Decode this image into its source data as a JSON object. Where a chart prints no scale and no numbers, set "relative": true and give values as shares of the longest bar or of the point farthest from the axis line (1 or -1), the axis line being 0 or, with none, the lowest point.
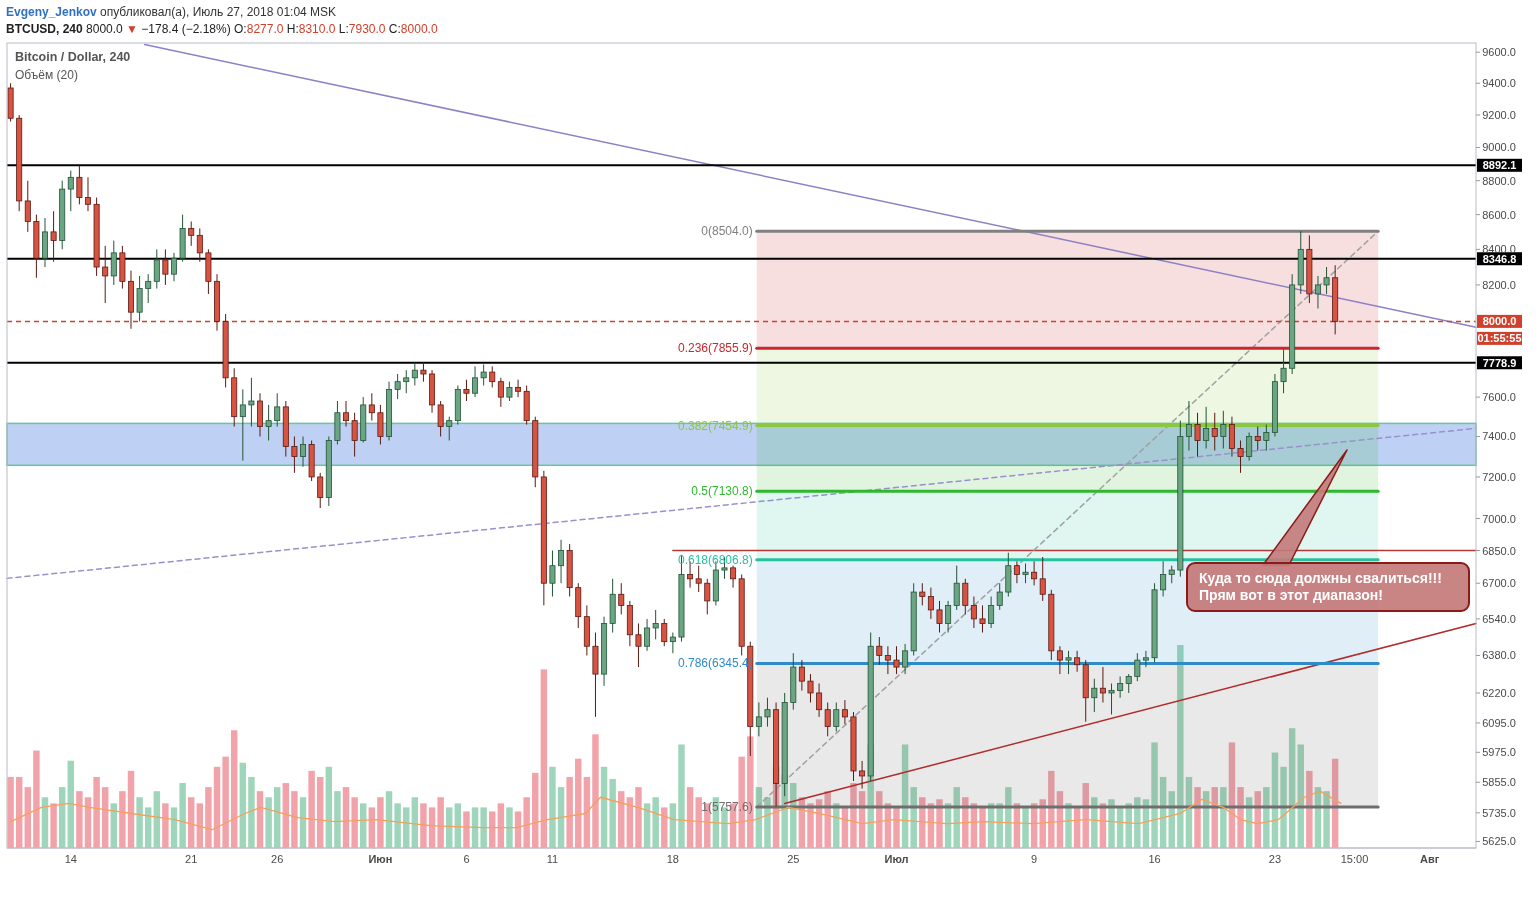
{
  "chart_data": [
    {
      "type": "candlestick",
      "title": "Bitcoin / Dollar, 240",
      "subtitle": "BTCUSD, 240 8000.0 ▼ −178.4 (−2.18%) O:8277.0 H:8310.0 L:7930.0 C:8000.0",
      "x": [
        "2018-05-10T12:00",
        "2018-05-11T00:00",
        "2018-05-11T12:00",
        "2018-05-12T00:00",
        "2018-05-12T12:00",
        "2018-05-13T00:00",
        "2018-05-13T12:00",
        "2018-05-14T00:00",
        "2018-05-14T12:00",
        "2018-05-15T00:00",
        "2018-05-15T12:00",
        "2018-05-16T00:00",
        "2018-05-16T12:00",
        "2018-05-17T00:00",
        "2018-05-17T12:00",
        "2018-05-18T00:00",
        "2018-05-18T12:00",
        "2018-05-19T00:00",
        "2018-05-19T12:00",
        "2018-05-20T00:00",
        "2018-05-20T12:00",
        "2018-05-21T00:00",
        "2018-05-21T12:00",
        "2018-05-22T00:00",
        "2018-05-22T12:00",
        "2018-05-23T00:00",
        "2018-05-23T12:00",
        "2018-05-24T00:00",
        "2018-05-24T12:00",
        "2018-05-25T00:00",
        "2018-05-25T12:00",
        "2018-05-26T00:00",
        "2018-05-26T12:00",
        "2018-05-27T00:00",
        "2018-05-27T12:00",
        "2018-05-28T00:00",
        "2018-05-28T12:00",
        "2018-05-29T00:00",
        "2018-05-29T12:00",
        "2018-05-30T00:00",
        "2018-05-30T12:00",
        "2018-05-31T00:00",
        "2018-05-31T12:00",
        "2018-06-01T00:00",
        "2018-06-01T12:00",
        "2018-06-02T00:00",
        "2018-06-02T12:00",
        "2018-06-03T00:00",
        "2018-06-03T12:00",
        "2018-06-04T00:00",
        "2018-06-04T12:00",
        "2018-06-05T00:00",
        "2018-06-05T12:00",
        "2018-06-06T00:00",
        "2018-06-06T12:00",
        "2018-06-07T00:00",
        "2018-06-07T12:00",
        "2018-06-08T00:00",
        "2018-06-08T12:00",
        "2018-06-09T00:00",
        "2018-06-09T12:00",
        "2018-06-10T00:00",
        "2018-06-10T12:00",
        "2018-06-11T00:00",
        "2018-06-11T12:00",
        "2018-06-12T00:00",
        "2018-06-12T12:00",
        "2018-06-13T00:00",
        "2018-06-13T12:00",
        "2018-06-14T00:00",
        "2018-06-14T12:00",
        "2018-06-15T00:00",
        "2018-06-15T12:00",
        "2018-06-16T00:00",
        "2018-06-16T12:00",
        "2018-06-17T00:00",
        "2018-06-17T12:00",
        "2018-06-18T00:00",
        "2018-06-18T12:00",
        "2018-06-19T00:00",
        "2018-06-19T12:00",
        "2018-06-20T00:00",
        "2018-06-20T12:00",
        "2018-06-21T00:00",
        "2018-06-21T12:00",
        "2018-06-22T00:00",
        "2018-06-22T12:00",
        "2018-06-23T00:00",
        "2018-06-23T12:00",
        "2018-06-24T00:00",
        "2018-06-24T12:00",
        "2018-06-25T00:00",
        "2018-06-25T12:00",
        "2018-06-26T00:00",
        "2018-06-26T12:00",
        "2018-06-27T00:00",
        "2018-06-27T12:00",
        "2018-06-28T00:00",
        "2018-06-28T12:00",
        "2018-06-29T00:00",
        "2018-06-29T12:00",
        "2018-06-30T00:00",
        "2018-06-30T12:00",
        "2018-07-01T00:00",
        "2018-07-01T12:00",
        "2018-07-02T00:00",
        "2018-07-02T12:00",
        "2018-07-03T00:00",
        "2018-07-03T12:00",
        "2018-07-04T00:00",
        "2018-07-04T12:00",
        "2018-07-05T00:00",
        "2018-07-05T12:00",
        "2018-07-06T00:00",
        "2018-07-06T12:00",
        "2018-07-07T00:00",
        "2018-07-07T12:00",
        "2018-07-08T00:00",
        "2018-07-08T12:00",
        "2018-07-09T00:00",
        "2018-07-09T12:00",
        "2018-07-10T00:00",
        "2018-07-10T12:00",
        "2018-07-11T00:00",
        "2018-07-11T12:00",
        "2018-07-12T00:00",
        "2018-07-12T12:00",
        "2018-07-13T00:00",
        "2018-07-13T12:00",
        "2018-07-14T00:00",
        "2018-07-14T12:00",
        "2018-07-15T00:00",
        "2018-07-15T12:00",
        "2018-07-16T00:00",
        "2018-07-16T12:00",
        "2018-07-17T00:00",
        "2018-07-17T12:00",
        "2018-07-18T00:00",
        "2018-07-18T12:00",
        "2018-07-19T00:00",
        "2018-07-19T12:00",
        "2018-07-20T00:00",
        "2018-07-20T12:00",
        "2018-07-21T00:00",
        "2018-07-21T12:00",
        "2018-07-22T00:00",
        "2018-07-22T12:00",
        "2018-07-23T00:00",
        "2018-07-23T12:00",
        "2018-07-24T00:00",
        "2018-07-24T12:00",
        "2018-07-25T00:00",
        "2018-07-25T12:00",
        "2018-07-26T00:00",
        "2018-07-26T12:00"
      ],
      "ohlc": [
        [
          9370,
          9400,
          9160,
          9180
        ],
        [
          9180,
          9200,
          8620,
          8680
        ],
        [
          8680,
          8800,
          8500,
          8560
        ],
        [
          8560,
          8600,
          8240,
          8350
        ],
        [
          8350,
          8580,
          8300,
          8500
        ],
        [
          8500,
          8620,
          8330,
          8450
        ],
        [
          8450,
          8800,
          8400,
          8750
        ],
        [
          8750,
          8860,
          8620,
          8820
        ],
        [
          8820,
          8890,
          8660,
          8700
        ],
        [
          8700,
          8820,
          8620,
          8660
        ],
        [
          8660,
          8700,
          8250,
          8300
        ],
        [
          8300,
          8420,
          8100,
          8250
        ],
        [
          8250,
          8450,
          8200,
          8380
        ],
        [
          8380,
          8420,
          8180,
          8220
        ],
        [
          8220,
          8280,
          7960,
          8050
        ],
        [
          8050,
          8250,
          8000,
          8180
        ],
        [
          8180,
          8260,
          8100,
          8220
        ],
        [
          8220,
          8400,
          8180,
          8340
        ],
        [
          8340,
          8400,
          8200,
          8260
        ],
        [
          8260,
          8380,
          8220,
          8350
        ],
        [
          8350,
          8600,
          8330,
          8520
        ],
        [
          8520,
          8560,
          8420,
          8480
        ],
        [
          8480,
          8520,
          8330,
          8380
        ],
        [
          8380,
          8400,
          8150,
          8220
        ],
        [
          8220,
          8260,
          7950,
          8000
        ],
        [
          8000,
          8040,
          7650,
          7700
        ],
        [
          7700,
          7750,
          7450,
          7500
        ],
        [
          7500,
          7640,
          7280,
          7560
        ],
        [
          7560,
          7700,
          7450,
          7580
        ],
        [
          7580,
          7620,
          7400,
          7450
        ],
        [
          7450,
          7560,
          7380,
          7480
        ],
        [
          7480,
          7620,
          7450,
          7550
        ],
        [
          7550,
          7580,
          7300,
          7350
        ],
        [
          7350,
          7400,
          7220,
          7300
        ],
        [
          7300,
          7400,
          7250,
          7360
        ],
        [
          7360,
          7380,
          7180,
          7200
        ],
        [
          7200,
          7220,
          7050,
          7100
        ],
        [
          7100,
          7400,
          7060,
          7380
        ],
        [
          7380,
          7580,
          7360,
          7520
        ],
        [
          7520,
          7580,
          7450,
          7480
        ],
        [
          7480,
          7520,
          7300,
          7380
        ],
        [
          7380,
          7600,
          7370,
          7560
        ],
        [
          7560,
          7620,
          7480,
          7520
        ],
        [
          7520,
          7560,
          7360,
          7400
        ],
        [
          7400,
          7680,
          7380,
          7640
        ],
        [
          7640,
          7720,
          7590,
          7680
        ],
        [
          7680,
          7740,
          7620,
          7700
        ],
        [
          7700,
          7780,
          7660,
          7740
        ],
        [
          7740,
          7780,
          7680,
          7720
        ],
        [
          7720,
          7740,
          7520,
          7560
        ],
        [
          7560,
          7580,
          7400,
          7450
        ],
        [
          7450,
          7500,
          7380,
          7480
        ],
        [
          7480,
          7660,
          7460,
          7640
        ],
        [
          7640,
          7690,
          7580,
          7620
        ],
        [
          7620,
          7760,
          7600,
          7700
        ],
        [
          7700,
          7770,
          7660,
          7730
        ],
        [
          7730,
          7760,
          7650,
          7680
        ],
        [
          7680,
          7700,
          7550,
          7600
        ],
        [
          7600,
          7680,
          7580,
          7650
        ],
        [
          7650,
          7690,
          7600,
          7630
        ],
        [
          7630,
          7660,
          7460,
          7480
        ],
        [
          7480,
          7500,
          7150,
          7200
        ],
        [
          7200,
          7230,
          6600,
          6700
        ],
        [
          6700,
          6850,
          6640,
          6780
        ],
        [
          6780,
          6900,
          6700,
          6850
        ],
        [
          6850,
          6880,
          6640,
          6680
        ],
        [
          6680,
          6700,
          6500,
          6550
        ],
        [
          6550,
          6600,
          6380,
          6420
        ],
        [
          6420,
          6480,
          6120,
          6300
        ],
        [
          6300,
          6550,
          6250,
          6520
        ],
        [
          6520,
          6720,
          6480,
          6650
        ],
        [
          6650,
          6700,
          6560,
          6600
        ],
        [
          6600,
          6620,
          6420,
          6470
        ],
        [
          6470,
          6520,
          6330,
          6420
        ],
        [
          6420,
          6540,
          6400,
          6500
        ],
        [
          6500,
          6580,
          6450,
          6520
        ],
        [
          6520,
          6540,
          6420,
          6440
        ],
        [
          6440,
          6480,
          6390,
          6460
        ],
        [
          6460,
          6830,
          6440,
          6740
        ],
        [
          6740,
          6800,
          6680,
          6720
        ],
        [
          6720,
          6780,
          6660,
          6700
        ],
        [
          6700,
          6720,
          6560,
          6620
        ],
        [
          6620,
          6800,
          6600,
          6760
        ],
        [
          6760,
          6820,
          6720,
          6770
        ],
        [
          6770,
          6780,
          6680,
          6720
        ],
        [
          6720,
          6740,
          6380,
          6420
        ],
        [
          6420,
          6440,
          5960,
          6080
        ],
        [
          6080,
          6180,
          6040,
          6120
        ],
        [
          6120,
          6200,
          6080,
          6150
        ],
        [
          6150,
          6180,
          5760,
          5850
        ],
        [
          5850,
          6220,
          5800,
          6180
        ],
        [
          6180,
          6390,
          6150,
          6330
        ],
        [
          6330,
          6360,
          6230,
          6270
        ],
        [
          6270,
          6300,
          6180,
          6220
        ],
        [
          6220,
          6260,
          6120,
          6150
        ],
        [
          6150,
          6180,
          6040,
          6080
        ],
        [
          6080,
          6180,
          6060,
          6150
        ],
        [
          6150,
          6190,
          6090,
          6120
        ],
        [
          6120,
          6140,
          5860,
          5900
        ],
        [
          5900,
          5940,
          5830,
          5880
        ],
        [
          5880,
          6480,
          5860,
          6420
        ],
        [
          6420,
          6460,
          6340,
          6380
        ],
        [
          6380,
          6420,
          6300,
          6360
        ],
        [
          6360,
          6420,
          6300,
          6330
        ],
        [
          6330,
          6430,
          6300,
          6400
        ],
        [
          6400,
          6700,
          6380,
          6660
        ],
        [
          6660,
          6700,
          6600,
          6640
        ],
        [
          6640,
          6680,
          6540,
          6580
        ],
        [
          6580,
          6620,
          6480,
          6520
        ],
        [
          6520,
          6620,
          6480,
          6600
        ],
        [
          6600,
          6780,
          6580,
          6700
        ],
        [
          6700,
          6720,
          6560,
          6600
        ],
        [
          6600,
          6640,
          6500,
          6540
        ],
        [
          6540,
          6600,
          6480,
          6520
        ],
        [
          6520,
          6640,
          6500,
          6600
        ],
        [
          6600,
          6700,
          6580,
          6660
        ],
        [
          6660,
          6840,
          6640,
          6780
        ],
        [
          6780,
          6800,
          6700,
          6740
        ],
        [
          6740,
          6790,
          6700,
          6750
        ],
        [
          6750,
          6800,
          6690,
          6720
        ],
        [
          6720,
          6820,
          6620,
          6650
        ],
        [
          6650,
          6670,
          6360,
          6400
        ],
        [
          6400,
          6420,
          6300,
          6360
        ],
        [
          6360,
          6400,
          6300,
          6370
        ],
        [
          6370,
          6400,
          6310,
          6340
        ],
        [
          6340,
          6360,
          6100,
          6200
        ],
        [
          6200,
          6280,
          6140,
          6240
        ],
        [
          6240,
          6330,
          6180,
          6220
        ],
        [
          6220,
          6260,
          6130,
          6230
        ],
        [
          6230,
          6290,
          6200,
          6260
        ],
        [
          6260,
          6300,
          6220,
          6290
        ],
        [
          6290,
          6390,
          6270,
          6360
        ],
        [
          6360,
          6400,
          6330,
          6370
        ],
        [
          6370,
          6700,
          6350,
          6670
        ],
        [
          6670,
          6800,
          6640,
          6740
        ],
        [
          6740,
          6780,
          6700,
          6760
        ],
        [
          6760,
          7480,
          6730,
          7400
        ],
        [
          7400,
          7580,
          7330,
          7460
        ],
        [
          7460,
          7520,
          7300,
          7380
        ],
        [
          7380,
          7550,
          7340,
          7440
        ],
        [
          7440,
          7520,
          7330,
          7400
        ],
        [
          7400,
          7530,
          7340,
          7460
        ],
        [
          7460,
          7500,
          7300,
          7340
        ],
        [
          7340,
          7380,
          7220,
          7300
        ],
        [
          7300,
          7420,
          7280,
          7400
        ],
        [
          7400,
          7450,
          7330,
          7380
        ],
        [
          7380,
          7460,
          7330,
          7420
        ],
        [
          7420,
          7720,
          7400,
          7680
        ],
        [
          7680,
          7850,
          7620,
          7750
        ],
        [
          7750,
          8260,
          7720,
          8200
        ],
        [
          8200,
          8504,
          8150,
          8400
        ],
        [
          8400,
          8480,
          8100,
          8150
        ],
        [
          8150,
          8250,
          8070,
          8200
        ],
        [
          8200,
          8300,
          8150,
          8240
        ],
        [
          8240,
          8310,
          7930,
          8000
        ]
      ],
      "series": [
        {
          "type": "line",
          "color": "#8e80c4",
          "x": [
            "2018-05-18T07:00",
            "2018-08-03T16:30"
          ],
          "values": [
            9650,
            7968
          ]
        },
        {
          "type": "line",
          "color": "#9a90cc",
          "line_style": "dashed",
          "x": [
            "2018-05-10T07:00",
            "2018-08-03T16:30"
          ],
          "values": [
            6722,
            7441
          ]
        },
        {
          "type": "line",
          "color": "#b22a2a",
          "x": [
            "2018-06-24T12:00",
            "2018-08-03T16:30"
          ],
          "values": [
            5771,
            6520
          ]
        },
        {
          "type": "line",
          "color": "#b03a3a",
          "x": [
            "2018-06-18T00:00",
            "2018-08-03T16:30"
          ],
          "values": [
            6850,
            6850
          ]
        },
        {
          "type": "line",
          "color": "#a0a0a0",
          "line_style": "dashed",
          "x": [
            "2018-06-22T21:00",
            "2018-07-29T00:00"
          ],
          "values": [
            5757.6,
            8504
          ]
        },
        {
          "name": "0(8504.0)",
          "type": "line",
          "color": "#808080",
          "x": [
            "2018-06-22T21:00",
            "2018-07-29T00:00"
          ],
          "values": [
            8504,
            8504
          ]
        },
        {
          "name": "0.236(7855.9)",
          "type": "line",
          "color": "#c8282e",
          "x": [
            "2018-06-22T21:00",
            "2018-07-29T00:00"
          ],
          "values": [
            7855.9,
            7855.9
          ],
          "lower": [
            7855.9,
            7855.9
          ],
          "upper": [
            8504,
            8504
          ]
        },
        {
          "name": "0.382(7454.9)",
          "type": "line",
          "color": "#8dc63f",
          "x": [
            "2018-06-22T21:00",
            "2018-07-29T00:00"
          ],
          "values": [
            7454.9,
            7454.9
          ],
          "lower": [
            7454.9,
            7454.9
          ],
          "upper": [
            7855.9,
            7855.9
          ]
        },
        {
          "name": "0.5(7130.8)",
          "type": "line",
          "color": "#2eb82e",
          "x": [
            "2018-06-22T21:00",
            "2018-07-29T00:00"
          ],
          "values": [
            7130.8,
            7130.8
          ],
          "lower": [
            7130.8,
            7130.8
          ],
          "upper": [
            7454.9,
            7454.9
          ]
        },
        {
          "name": "0.618(6806.8)",
          "type": "line",
          "color": "#26c2a0",
          "x": [
            "2018-06-22T21:00",
            "2018-07-29T00:00"
          ],
          "values": [
            6806.8,
            6806.8
          ],
          "lower": [
            6806.8,
            6806.8
          ],
          "upper": [
            7130.8,
            7130.8
          ]
        },
        {
          "name": "0.786(6345.4)",
          "type": "line",
          "color": "#2e8bc8",
          "x": [
            "2018-06-22T21:00",
            "2018-07-29T00:00"
          ],
          "values": [
            6345.4,
            6345.4
          ],
          "lower": [
            6345.4,
            6345.4
          ],
          "upper": [
            6806.8,
            6806.8
          ]
        },
        {
          "name": "1(5757.6)",
          "type": "line",
          "color": "#6e6e6e",
          "x": [
            "2018-06-22T21:00",
            "2018-07-29T00:00"
          ],
          "values": [
            5757.6,
            5757.6
          ],
          "lower": [
            5757.6,
            5757.6
          ],
          "upper": [
            6345.4,
            6345.4
          ]
        }
      ],
      "xlim": [
        "2018-05-10T07:00",
        "2018-08-03T16:30"
      ],
      "xticks": [
        {
          "value": "2018-05-14",
          "label": "14"
        },
        {
          "value": "2018-05-21",
          "label": "21"
        },
        {
          "value": "2018-05-26",
          "label": "26"
        },
        {
          "value": "2018-06-01",
          "label": "Июн"
        },
        {
          "value": "2018-06-06",
          "label": "6"
        },
        {
          "value": "2018-06-11",
          "label": "11"
        },
        {
          "value": "2018-06-18",
          "label": "18"
        },
        {
          "value": "2018-06-25",
          "label": "25"
        },
        {
          "value": "2018-07-01",
          "label": "Июл"
        },
        {
          "value": "2018-07-09",
          "label": "9"
        },
        {
          "value": "2018-07-16",
          "label": "16"
        },
        {
          "value": "2018-07-23",
          "label": "23"
        },
        {
          "value": "2018-07-27T15:00",
          "label": "15:00"
        },
        {
          "value": "2018-08-01",
          "label": "Авг"
        }
      ],
      "ylim": [
        5600,
        9660
      ],
      "log": true,
      "yticks": [
        {
          "value": 5625,
          "label": "5625.0"
        },
        {
          "value": 5735,
          "label": "5735.0"
        },
        {
          "value": 5855,
          "label": "5855.0"
        },
        {
          "value": 5975,
          "label": "5975.0"
        },
        {
          "value": 6095,
          "label": "6095.0"
        },
        {
          "value": 6220,
          "label": "6220.0"
        },
        {
          "value": 6380,
          "label": "6380.0"
        },
        {
          "value": 6540,
          "label": "6540.0"
        },
        {
          "value": 6700,
          "label": "6700.0"
        },
        {
          "value": 6850,
          "label": "6850.0"
        },
        {
          "value": 7000,
          "label": "7000.0"
        },
        {
          "value": 7200,
          "label": "7200.0"
        },
        {
          "value": 7400,
          "label": "7400.0"
        },
        {
          "value": 7600,
          "label": "7600.0"
        },
        {
          "value": 8200,
          "label": "8200.0"
        },
        {
          "value": 8400,
          "label": "8400.0"
        },
        {
          "value": 8600,
          "label": "8600.0"
        },
        {
          "value": 8800,
          "label": "8800.0"
        },
        {
          "value": 9000,
          "label": "9000.0"
        },
        {
          "value": 9200,
          "label": "9200.0"
        },
        {
          "value": 9400,
          "label": "9400.0"
        },
        {
          "value": 9600,
          "label": "9600.0"
        }
      ],
      "ref_lines": [
        {
          "axis": "y",
          "value": 8892.1,
          "label": "8892.1",
          "color": "#000000"
        },
        {
          "axis": "y",
          "value": 8346.8,
          "label": "8346.8",
          "color": "#000000"
        },
        {
          "axis": "y",
          "value": 8000,
          "label": "8000.0",
          "color": "#d0402a",
          "line_style": "dashed"
        },
        {
          "axis": "y",
          "value": 7778.9,
          "label": "7778.9",
          "color": "#000000"
        }
      ],
      "bands": [
        {
          "axis": "y",
          "from": 7257,
          "to": 7466,
          "color": "#b3c9f2"
        }
      ],
      "annotations": [
        "Evgeny_Jenkov опубликовал(а), Июль 27, 2018 01:04 MSK",
        "01:55:55",
        "Куда то сюда должны свалиться!!!\nПрям вот в этот диапазон!"
      ]
    },
    {
      "type": "bar",
      "title": "Объём (20)",
      "relative": true,
      "tick_labels": false,
      "xlim": [
        "2018-05-10T07:00",
        "2018-08-03T16:30"
      ],
      "x": [
        "2018-05-10T12:00",
        "2018-05-11T00:00",
        "2018-05-11T12:00",
        "2018-05-12T00:00",
        "2018-05-12T12:00",
        "2018-05-13T00:00",
        "2018-05-13T12:00",
        "2018-05-14T00:00",
        "2018-05-14T12:00",
        "2018-05-15T00:00",
        "2018-05-15T12:00",
        "2018-05-16T00:00",
        "2018-05-16T12:00",
        "2018-05-17T00:00",
        "2018-05-17T12:00",
        "2018-05-18T00:00",
        "2018-05-18T12:00",
        "2018-05-19T00:00",
        "2018-05-19T12:00",
        "2018-05-20T00:00",
        "2018-05-20T12:00",
        "2018-05-21T00:00",
        "2018-05-21T12:00",
        "2018-05-22T00:00",
        "2018-05-22T12:00",
        "2018-05-23T00:00",
        "2018-05-23T12:00",
        "2018-05-24T00:00",
        "2018-05-24T12:00",
        "2018-05-25T00:00",
        "2018-05-25T12:00",
        "2018-05-26T00:00",
        "2018-05-26T12:00",
        "2018-05-27T00:00",
        "2018-05-27T12:00",
        "2018-05-28T00:00",
        "2018-05-28T12:00",
        "2018-05-29T00:00",
        "2018-05-29T12:00",
        "2018-05-30T00:00",
        "2018-05-30T12:00",
        "2018-05-31T00:00",
        "2018-05-31T12:00",
        "2018-06-01T00:00",
        "2018-06-01T12:00",
        "2018-06-02T00:00",
        "2018-06-02T12:00",
        "2018-06-03T00:00",
        "2018-06-03T12:00",
        "2018-06-04T00:00",
        "2018-06-04T12:00",
        "2018-06-05T00:00",
        "2018-06-05T12:00",
        "2018-06-06T00:00",
        "2018-06-06T12:00",
        "2018-06-07T00:00",
        "2018-06-07T12:00",
        "2018-06-08T00:00",
        "2018-06-08T12:00",
        "2018-06-09T00:00",
        "2018-06-09T12:00",
        "2018-06-10T00:00",
        "2018-06-10T12:00",
        "2018-06-11T00:00",
        "2018-06-11T12:00",
        "2018-06-12T00:00",
        "2018-06-12T12:00",
        "2018-06-13T00:00",
        "2018-06-13T12:00",
        "2018-06-14T00:00",
        "2018-06-14T12:00",
        "2018-06-15T00:00",
        "2018-06-15T12:00",
        "2018-06-16T00:00",
        "2018-06-16T12:00",
        "2018-06-17T00:00",
        "2018-06-17T12:00",
        "2018-06-18T00:00",
        "2018-06-18T12:00",
        "2018-06-19T00:00",
        "2018-06-19T12:00",
        "2018-06-20T00:00",
        "2018-06-20T12:00",
        "2018-06-21T00:00",
        "2018-06-21T12:00",
        "2018-06-22T00:00",
        "2018-06-22T12:00",
        "2018-06-23T00:00",
        "2018-06-23T12:00",
        "2018-06-24T00:00",
        "2018-06-24T12:00",
        "2018-06-25T00:00",
        "2018-06-25T12:00",
        "2018-06-26T00:00",
        "2018-06-26T12:00",
        "2018-06-27T00:00",
        "2018-06-27T12:00",
        "2018-06-28T00:00",
        "2018-06-28T12:00",
        "2018-06-29T00:00",
        "2018-06-29T12:00",
        "2018-06-30T00:00",
        "2018-06-30T12:00",
        "2018-07-01T00:00",
        "2018-07-01T12:00",
        "2018-07-02T00:00",
        "2018-07-02T12:00",
        "2018-07-03T00:00",
        "2018-07-03T12:00",
        "2018-07-04T00:00",
        "2018-07-04T12:00",
        "2018-07-05T00:00",
        "2018-07-05T12:00",
        "2018-07-06T00:00",
        "2018-07-06T12:00",
        "2018-07-07T00:00",
        "2018-07-07T12:00",
        "2018-07-08T00:00",
        "2018-07-08T12:00",
        "2018-07-09T00:00",
        "2018-07-09T12:00",
        "2018-07-10T00:00",
        "2018-07-10T12:00",
        "2018-07-11T00:00",
        "2018-07-11T12:00",
        "2018-07-12T00:00",
        "2018-07-12T12:00",
        "2018-07-13T00:00",
        "2018-07-13T12:00",
        "2018-07-14T00:00",
        "2018-07-14T12:00",
        "2018-07-15T00:00",
        "2018-07-15T12:00",
        "2018-07-16T00:00",
        "2018-07-16T12:00",
        "2018-07-17T00:00",
        "2018-07-17T12:00",
        "2018-07-18T00:00",
        "2018-07-18T12:00",
        "2018-07-19T00:00",
        "2018-07-19T12:00",
        "2018-07-20T00:00",
        "2018-07-20T12:00",
        "2018-07-21T00:00",
        "2018-07-21T12:00",
        "2018-07-22T00:00",
        "2018-07-22T12:00",
        "2018-07-23T00:00",
        "2018-07-23T12:00",
        "2018-07-24T00:00",
        "2018-07-24T12:00",
        "2018-07-25T00:00",
        "2018-07-25T12:00",
        "2018-07-26T00:00",
        "2018-07-26T12:00"
      ],
      "series": [
        {
          "type": "bar",
          "values": [
            0.35,
            0.35,
            0.3,
            0.48,
            0.25,
            0.22,
            0.3,
            0.43,
            0.28,
            0.25,
            0.35,
            0.3,
            0.22,
            0.28,
            0.38,
            0.25,
            0.2,
            0.28,
            0.22,
            0.2,
            0.32,
            0.25,
            0.22,
            0.3,
            0.4,
            0.45,
            0.58,
            0.42,
            0.35,
            0.28,
            0.25,
            0.3,
            0.32,
            0.28,
            0.25,
            0.38,
            0.35,
            0.4,
            0.28,
            0.3,
            0.25,
            0.22,
            0.2,
            0.25,
            0.28,
            0.22,
            0.2,
            0.25,
            0.22,
            0.2,
            0.25,
            0.2,
            0.22,
            0.18,
            0.2,
            0.2,
            0.18,
            0.22,
            0.2,
            0.18,
            0.25,
            0.37,
            0.88,
            0.4,
            0.3,
            0.35,
            0.44,
            0.35,
            0.56,
            0.4,
            0.34,
            0.28,
            0.25,
            0.3,
            0.22,
            0.25,
            0.2,
            0.22,
            0.51,
            0.3,
            0.25,
            0.22,
            0.25,
            0.2,
            0.22,
            0.45,
            0.55,
            0.3,
            0.25,
            0.4,
            0.36,
            0.32,
            0.25,
            0.22,
            0.24,
            0.28,
            0.22,
            0.2,
            0.32,
            0.28,
            0.51,
            0.28,
            0.22,
            0.2,
            0.51,
            0.3,
            0.25,
            0.22,
            0.24,
            0.22,
            0.3,
            0.25,
            0.22,
            0.2,
            0.22,
            0.22,
            0.3,
            0.22,
            0.2,
            0.22,
            0.24,
            0.38,
            0.28,
            0.22,
            0.2,
            0.32,
            0.25,
            0.22,
            0.24,
            0.2,
            0.22,
            0.25,
            0.24,
            0.52,
            0.35,
            0.28,
            1.0,
            0.35,
            0.3,
            0.28,
            0.3,
            0.3,
            0.52,
            0.3,
            0.25,
            0.28,
            0.3,
            0.47,
            0.4,
            0.59,
            0.51,
            0.38,
            0.3,
            0.28,
            0.44
          ],
          "colors": [
            "#f2a3aa",
            "#f2a3aa",
            "#f2a3aa",
            "#f2a3aa",
            "#9fd6bb",
            "#f2a3aa",
            "#9fd6bb",
            "#9fd6bb",
            "#f2a3aa",
            "#f2a3aa",
            "#f2a3aa",
            "#f2a3aa",
            "#9fd6bb",
            "#f2a3aa",
            "#f2a3aa",
            "#9fd6bb",
            "#9fd6bb",
            "#9fd6bb",
            "#f2a3aa",
            "#9fd6bb",
            "#9fd6bb",
            "#f2a3aa",
            "#f2a3aa",
            "#f2a3aa",
            "#f2a3aa",
            "#f2a3aa",
            "#f2a3aa",
            "#9fd6bb",
            "#9fd6bb",
            "#f2a3aa",
            "#9fd6bb",
            "#9fd6bb",
            "#f2a3aa",
            "#f2a3aa",
            "#9fd6bb",
            "#f2a3aa",
            "#f2a3aa",
            "#9fd6bb",
            "#9fd6bb",
            "#f2a3aa",
            "#f2a3aa",
            "#9fd6bb",
            "#f2a3aa",
            "#f2a3aa",
            "#9fd6bb",
            "#9fd6bb",
            "#9fd6bb",
            "#9fd6bb",
            "#f2a3aa",
            "#f2a3aa",
            "#f2a3aa",
            "#9fd6bb",
            "#9fd6bb",
            "#f2a3aa",
            "#9fd6bb",
            "#9fd6bb",
            "#f2a3aa",
            "#f2a3aa",
            "#9fd6bb",
            "#f2a3aa",
            "#f2a3aa",
            "#f2a3aa",
            "#f2a3aa",
            "#9fd6bb",
            "#9fd6bb",
            "#f2a3aa",
            "#f2a3aa",
            "#f2a3aa",
            "#f2a3aa",
            "#9fd6bb",
            "#9fd6bb",
            "#f2a3aa",
            "#f2a3aa",
            "#f2a3aa",
            "#9fd6bb",
            "#9fd6bb",
            "#f2a3aa",
            "#9fd6bb",
            "#9fd6bb",
            "#f2a3aa",
            "#f2a3aa",
            "#f2a3aa",
            "#9fd6bb",
            "#9fd6bb",
            "#f2a3aa",
            "#f2a3aa",
            "#f2a3aa",
            "#9fd6bb",
            "#9fd6bb",
            "#f2a3aa",
            "#9fd6bb",
            "#9fd6bb",
            "#f2a3aa",
            "#f2a3aa",
            "#f2a3aa",
            "#f2a3aa",
            "#9fd6bb",
            "#f2a3aa",
            "#f2a3aa",
            "#f2a3aa",
            "#9fd6bb",
            "#f2a3aa",
            "#f2a3aa",
            "#f2a3aa",
            "#9fd6bb",
            "#9fd6bb",
            "#f2a3aa",
            "#f2a3aa",
            "#f2a3aa",
            "#9fd6bb",
            "#9fd6bb",
            "#f2a3aa",
            "#f2a3aa",
            "#f2a3aa",
            "#9fd6bb",
            "#9fd6bb",
            "#9fd6bb",
            "#f2a3aa",
            "#9fd6bb",
            "#f2a3aa",
            "#f2a3aa",
            "#f2a3aa",
            "#f2a3aa",
            "#9fd6bb",
            "#f2a3aa",
            "#f2a3aa",
            "#9fd6bb",
            "#f2a3aa",
            "#9fd6bb",
            "#9fd6bb",
            "#9fd6bb",
            "#9fd6bb",
            "#9fd6bb",
            "#9fd6bb",
            "#9fd6bb",
            "#9fd6bb",
            "#9fd6bb",
            "#9fd6bb",
            "#f2a3aa",
            "#9fd6bb",
            "#f2a3aa",
            "#9fd6bb",
            "#f2a3aa",
            "#f2a3aa",
            "#9fd6bb",
            "#f2a3aa",
            "#9fd6bb",
            "#9fd6bb",
            "#9fd6bb",
            "#9fd6bb",
            "#9fd6bb",
            "#f2a3aa",
            "#9fd6bb",
            "#9fd6bb",
            "#f2a3aa"
          ]
        },
        {
          "type": "line",
          "color": "#f5a05a",
          "x": [
            "2018-05-10T12:00",
            "2018-05-12T07:00",
            "2018-05-13T21:00",
            "2018-05-15T02:00",
            "2018-05-17T13:00",
            "2018-05-20T01:00",
            "2018-05-22T05:00",
            "2018-05-24T03:00",
            "2018-05-25T01:00",
            "2018-05-27T05:00",
            "2018-05-29T08:00",
            "2018-05-31T19:00",
            "2018-06-03T21:00",
            "2018-06-06T23:00",
            "2018-06-08T22:00",
            "2018-06-10T17:00",
            "2018-06-12T22:00",
            "2018-06-13T19:00",
            "2018-06-15T23:00",
            "2018-06-18T02:00",
            "2018-06-21T05:00",
            "2018-06-22T19:00",
            "2018-06-24T17:00",
            "2018-06-26T12:00",
            "2018-06-29T00:00",
            "2018-06-30T20:00",
            "2018-07-03T22:00",
            "2018-07-06T02:00",
            "2018-07-08T22:00",
            "2018-07-12T00:00",
            "2018-07-15T02:00",
            "2018-07-17T12:00",
            "2018-07-18T18:00",
            "2018-07-20T00:00",
            "2018-07-21T00:00",
            "2018-07-22T00:00",
            "2018-07-23T05:00",
            "2018-07-24T17:00",
            "2018-07-25T15:00",
            "2018-07-26T20:00"
          ],
          "values": [
            0.13,
            0.2,
            0.22,
            0.2,
            0.17,
            0.14,
            0.09,
            0.17,
            0.2,
            0.15,
            0.13,
            0.14,
            0.11,
            0.1,
            0.1,
            0.14,
            0.17,
            0.25,
            0.2,
            0.14,
            0.12,
            0.14,
            0.2,
            0.17,
            0.12,
            0.14,
            0.12,
            0.13,
            0.12,
            0.14,
            0.12,
            0.17,
            0.24,
            0.2,
            0.14,
            0.12,
            0.14,
            0.25,
            0.28,
            0.22
          ]
        }
      ]
    }
  ]
}
